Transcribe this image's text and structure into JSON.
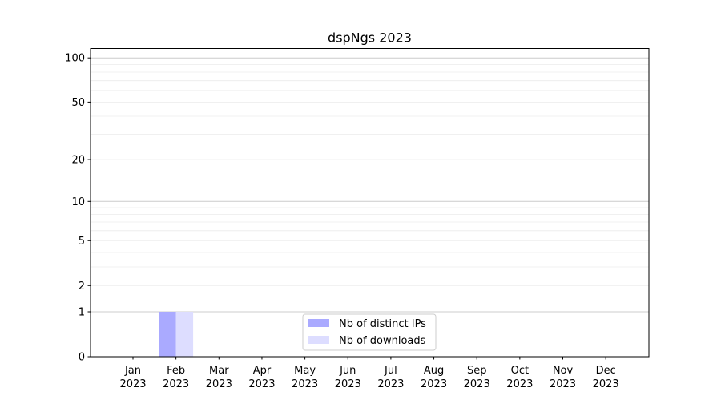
{
  "chart_data": {
    "type": "bar",
    "title": "dspNgs 2023",
    "xlabel": "",
    "ylabel": "",
    "yscale": "log(1+y)",
    "ylim": [
      0,
      116
    ],
    "yticks": [
      0,
      1,
      2,
      5,
      10,
      20,
      50,
      100
    ],
    "grid": true,
    "legend_position": "bottom-center",
    "categories": [
      "Jan\n2023",
      "Feb\n2023",
      "Mar\n2023",
      "Apr\n2023",
      "May\n2023",
      "Jun\n2023",
      "Jul\n2023",
      "Aug\n2023",
      "Sep\n2023",
      "Oct\n2023",
      "Nov\n2023",
      "Dec\n2023"
    ],
    "series": [
      {
        "name": "Nb of distinct IPs",
        "color": "#aaaaff",
        "values": [
          0,
          1,
          0,
          0,
          0,
          0,
          0,
          0,
          0,
          0,
          0,
          0
        ]
      },
      {
        "name": "Nb of downloads",
        "color": "#ddddff",
        "values": [
          0,
          1,
          0,
          0,
          0,
          0,
          0,
          0,
          0,
          0,
          0,
          0
        ]
      }
    ]
  }
}
